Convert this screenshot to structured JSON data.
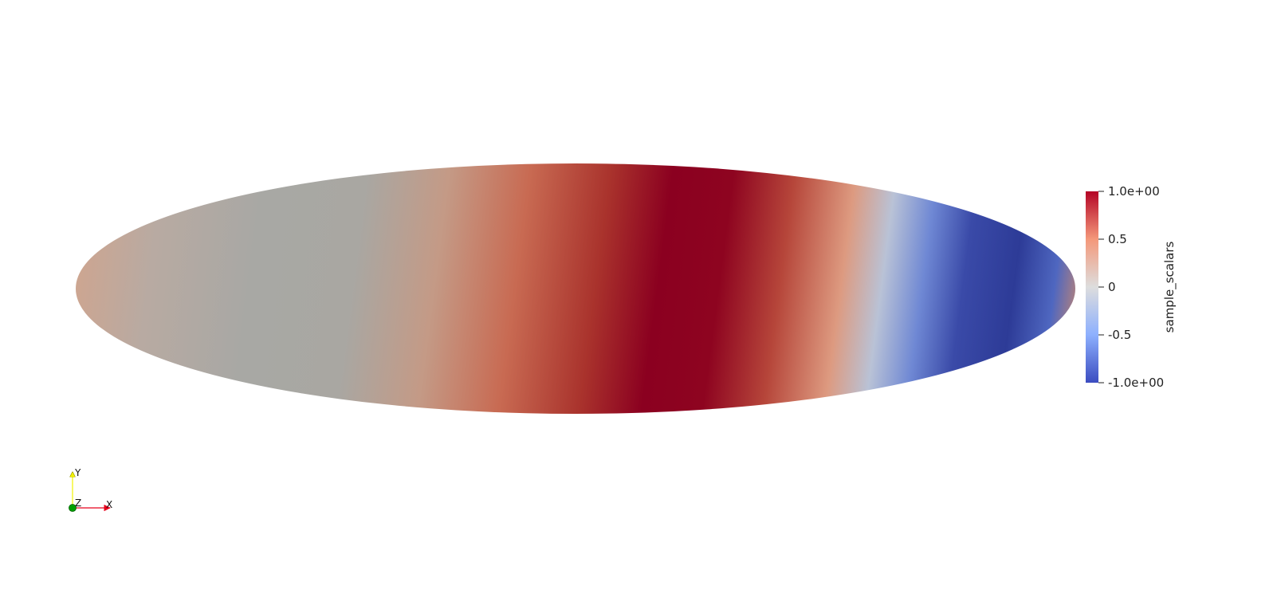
{
  "scene": {
    "background": "#ffffff",
    "scalar_field": {
      "colormap": "cool-to-warm",
      "low_color": "#3b4cc0",
      "mid_color": "#dddddd",
      "high_color": "#b40426"
    }
  },
  "colorbar": {
    "title": "sample_scalars",
    "range": [
      -1.0,
      1.0
    ],
    "ticks": [
      {
        "value": 1.0,
        "label": "1.0e+00"
      },
      {
        "value": 0.5,
        "label": "0.5"
      },
      {
        "value": 0.0,
        "label": "0"
      },
      {
        "value": -0.5,
        "label": "-0.5"
      },
      {
        "value": -1.0,
        "label": "-1.0e+00"
      }
    ]
  },
  "axes_widget": {
    "x_label": "X",
    "y_label": "Y",
    "z_label": "Z",
    "x_color": "#e8001c",
    "y_color": "#f2f200",
    "z_color": "#00a000"
  }
}
